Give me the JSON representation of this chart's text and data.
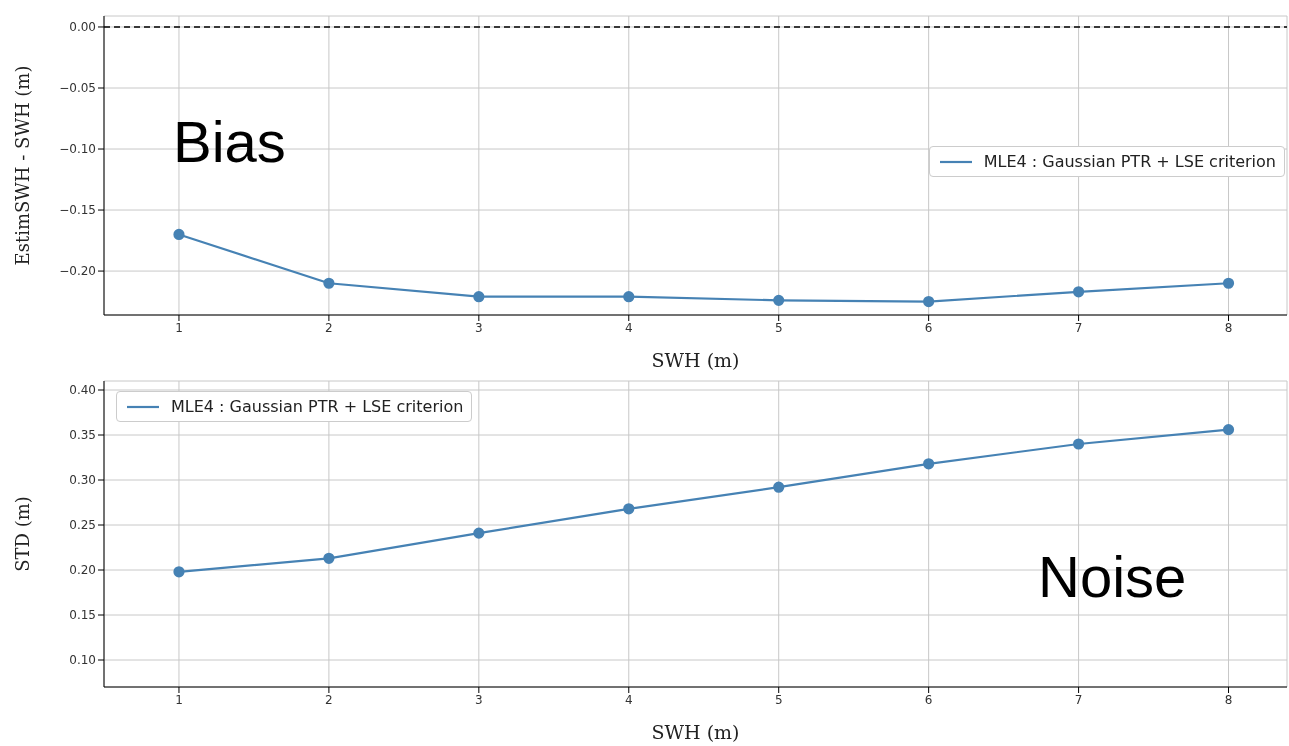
{
  "chart_data": [
    {
      "type": "line",
      "xlabel": "SWH (m)",
      "ylabel": "EstimSWH - SWH (m)",
      "x": [
        1,
        2,
        3,
        4,
        5,
        6,
        7,
        8
      ],
      "series": [
        {
          "name": "MLE4 : Gaussian PTR + LSE criterion",
          "color": "#4682b4",
          "values": [
            -0.17,
            -0.21,
            -0.221,
            -0.221,
            -0.224,
            -0.225,
            -0.217,
            -0.21
          ]
        }
      ],
      "xlim": [
        0.5,
        8.39
      ],
      "xticks": [
        1,
        2,
        3,
        4,
        5,
        6,
        7,
        8
      ],
      "ylim": [
        -0.236,
        0.009
      ],
      "yticks": [
        {
          "value": 0,
          "label": "0.00"
        },
        {
          "value": -0.05,
          "label": "−0.05"
        },
        {
          "value": -0.1,
          "label": "−0.10"
        },
        {
          "value": -0.15,
          "label": "−0.15"
        },
        {
          "value": -0.2,
          "label": "−0.20"
        }
      ],
      "ref_lines": [
        {
          "axis": "y",
          "value": 0,
          "color": "#000000",
          "line_style": "dashed"
        }
      ],
      "annotations": [
        "Bias"
      ],
      "grid": true,
      "legend": "right",
      "marker": "circle",
      "line_style": "solid"
    },
    {
      "type": "line",
      "xlabel": "SWH (m)",
      "ylabel": "STD (m)",
      "x": [
        1,
        2,
        3,
        4,
        5,
        6,
        7,
        8
      ],
      "series": [
        {
          "name": "MLE4 : Gaussian PTR + LSE criterion",
          "color": "#4682b4",
          "values": [
            0.198,
            0.213,
            0.241,
            0.268,
            0.292,
            0.318,
            0.34,
            0.356
          ]
        }
      ],
      "xlim": [
        0.5,
        8.39
      ],
      "xticks": [
        1,
        2,
        3,
        4,
        5,
        6,
        7,
        8
      ],
      "ylim": [
        0.07,
        0.41
      ],
      "yticks": [
        {
          "value": 0.1,
          "label": "0.10"
        },
        {
          "value": 0.15,
          "label": "0.15"
        },
        {
          "value": 0.2,
          "label": "0.20"
        },
        {
          "value": 0.25,
          "label": "0.25"
        },
        {
          "value": 0.3,
          "label": "0.30"
        },
        {
          "value": 0.35,
          "label": "0.35"
        },
        {
          "value": 0.4,
          "label": "0.40"
        }
      ],
      "annotations": [
        "Noise"
      ],
      "grid": true,
      "legend": "top left",
      "marker": "circle",
      "line_style": "solid"
    }
  ]
}
